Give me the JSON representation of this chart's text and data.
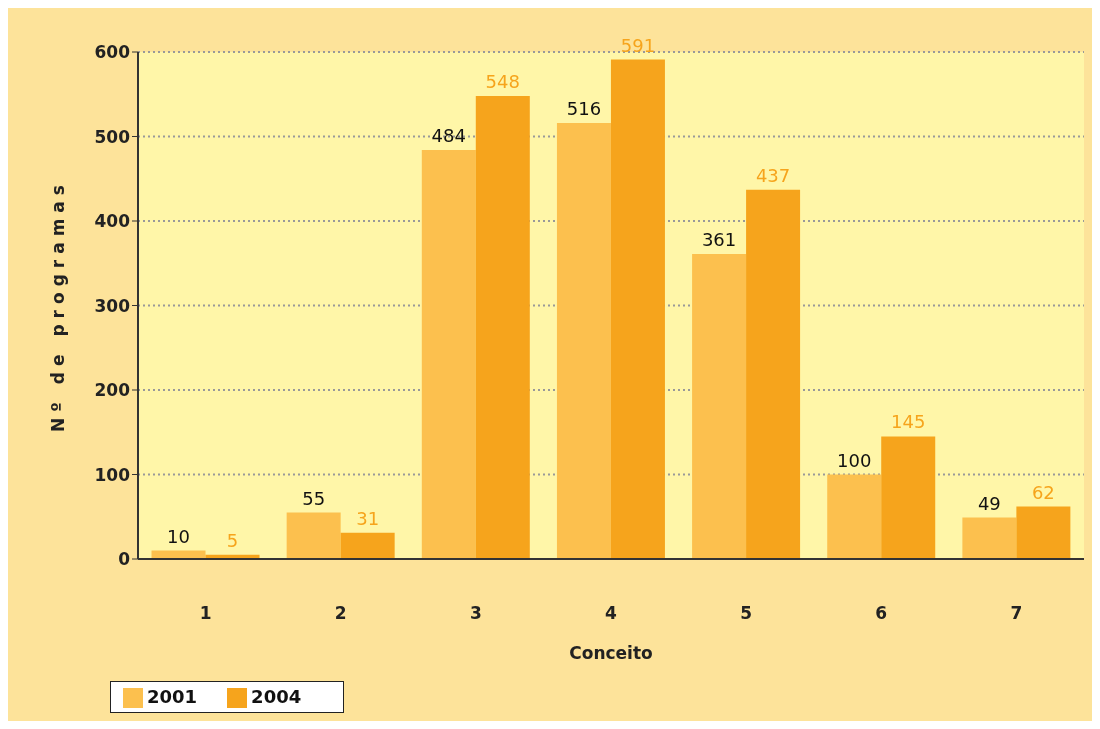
{
  "chart_data": {
    "type": "bar",
    "xlabel": "Conceito",
    "ylabel": "Nº de programas",
    "categories": [
      "1",
      "2",
      "3",
      "4",
      "5",
      "6",
      "7"
    ],
    "series": [
      {
        "name": "2001",
        "color": "#fcc04e",
        "values": [
          10,
          55,
          484,
          516,
          361,
          100,
          49
        ]
      },
      {
        "name": "2004",
        "color": "#f6a41c",
        "values": [
          5,
          31,
          548,
          591,
          437,
          145,
          62
        ]
      }
    ],
    "ylim": [
      0,
      600
    ],
    "yticks": [
      0,
      100,
      200,
      300,
      400,
      500,
      600
    ],
    "grid": "y",
    "legend": "bottom left",
    "data_labels": true
  }
}
